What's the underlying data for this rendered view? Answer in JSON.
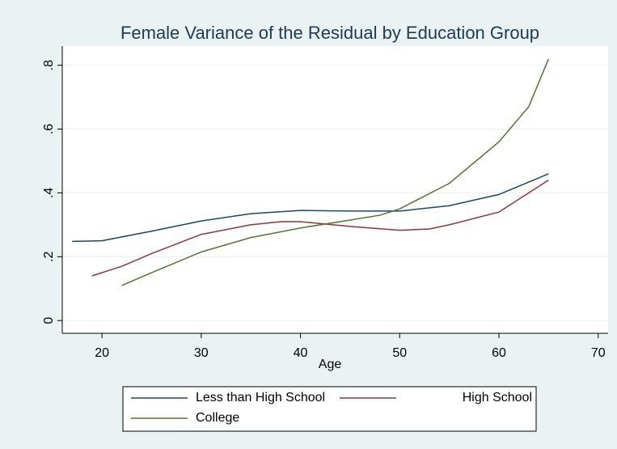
{
  "chart_data": {
    "type": "line",
    "title": "Female Variance of the Residual by Education Group",
    "x_label": "Age",
    "xlim": [
      16,
      71
    ],
    "xticks": [
      20,
      30,
      40,
      50,
      60,
      70
    ],
    "ylim": [
      -0.04,
      0.86
    ],
    "yticks": [
      0,
      {
        "value": 0.2,
        "label": ".2"
      },
      {
        "value": 0.4,
        "label": ".4"
      },
      {
        "value": 0.6,
        "label": ".6"
      },
      {
        "value": 0.8,
        "label": ".8"
      }
    ],
    "grid": true,
    "series": [
      {
        "name": "Less than High School",
        "color": "#1a476f",
        "x": [
          17,
          20,
          25,
          30,
          35,
          40,
          45,
          50,
          55,
          60,
          65
        ],
        "values": [
          0.248,
          0.25,
          0.28,
          0.312,
          0.335,
          0.345,
          0.343,
          0.343,
          0.36,
          0.395,
          0.46
        ]
      },
      {
        "name": "High School",
        "color": "#90353b",
        "x": [
          19,
          22,
          25,
          30,
          35,
          38,
          40,
          45,
          50,
          53,
          55,
          60,
          65
        ],
        "values": [
          0.14,
          0.17,
          0.21,
          0.27,
          0.3,
          0.31,
          0.31,
          0.295,
          0.283,
          0.287,
          0.3,
          0.34,
          0.44
        ]
      },
      {
        "name": "College",
        "color": "#55752f",
        "x": [
          22,
          25,
          30,
          35,
          40,
          45,
          48,
          50,
          55,
          60,
          63,
          65
        ],
        "values": [
          0.11,
          0.15,
          0.215,
          0.26,
          0.29,
          0.315,
          0.33,
          0.35,
          0.43,
          0.56,
          0.67,
          0.82
        ]
      }
    ]
  }
}
